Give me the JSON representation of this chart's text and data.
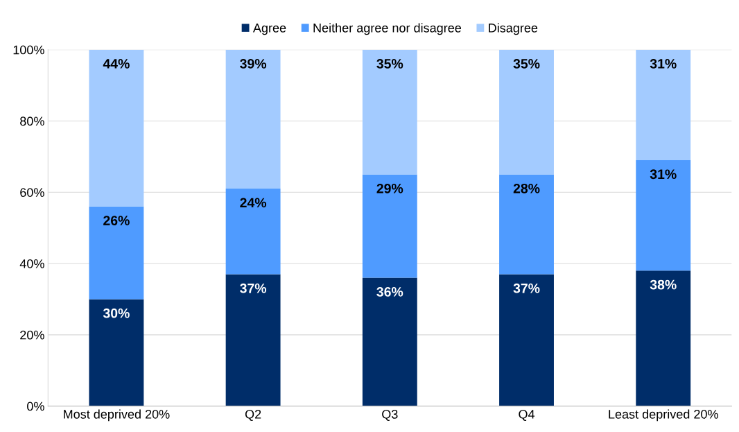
{
  "chart_data": {
    "type": "bar",
    "stacked": true,
    "categories": [
      "Most deprived 20%",
      "Q2",
      "Q3",
      "Q4",
      "Least deprived 20%"
    ],
    "series": [
      {
        "name": "Agree",
        "color": "#002d69",
        "values": [
          30,
          37,
          36,
          37,
          38
        ],
        "value_labels": [
          "30%",
          "37%",
          "36%",
          "37%",
          "38%"
        ]
      },
      {
        "name": "Neither agree nor disagree",
        "color": "#4f9bff",
        "values": [
          26,
          24,
          29,
          28,
          31
        ],
        "value_labels": [
          "26%",
          "24%",
          "29%",
          "28%",
          "31%"
        ]
      },
      {
        "name": "Disagree",
        "color": "#a3cbff",
        "values": [
          44,
          39,
          35,
          35,
          31
        ],
        "value_labels": [
          "44%",
          "39%",
          "35%",
          "35%",
          "31%"
        ]
      }
    ],
    "ylim": [
      0,
      100
    ],
    "yticks": [
      {
        "value": 0,
        "label": "0%"
      },
      {
        "value": 20,
        "label": "20%"
      },
      {
        "value": 40,
        "label": "40%"
      },
      {
        "value": 60,
        "label": "60%"
      },
      {
        "value": 80,
        "label": "80%"
      },
      {
        "value": 100,
        "label": "100%"
      }
    ],
    "grid": "y",
    "legend": "top"
  }
}
